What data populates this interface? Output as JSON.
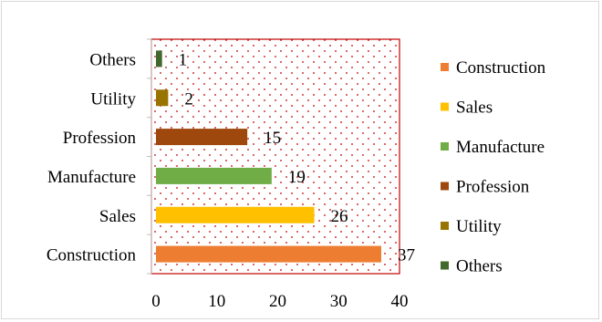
{
  "chart_data": {
    "type": "bar",
    "orientation": "horizontal",
    "categories": [
      "Construction",
      "Sales",
      "Manufacture",
      "Profession",
      "Utility",
      "Others"
    ],
    "values": [
      37,
      26,
      19,
      15,
      2,
      1
    ],
    "colors": [
      "#ED7D31",
      "#FFC000",
      "#70AD47",
      "#9E480E",
      "#997300",
      "#43682B"
    ],
    "xlim": [
      0,
      40
    ],
    "xticks": [
      "0",
      "10",
      "20",
      "30",
      "40"
    ],
    "grid": false,
    "plot_area": {
      "fill": "dotted",
      "border_color": "#C00000",
      "dot_color": "#C00000"
    },
    "data_labels": true,
    "legend": {
      "position": "right",
      "entries": [
        "Construction",
        "Sales",
        "Manufacture",
        "Profession",
        "Utility",
        "Others"
      ]
    },
    "title": "",
    "xlabel": "",
    "ylabel": ""
  }
}
